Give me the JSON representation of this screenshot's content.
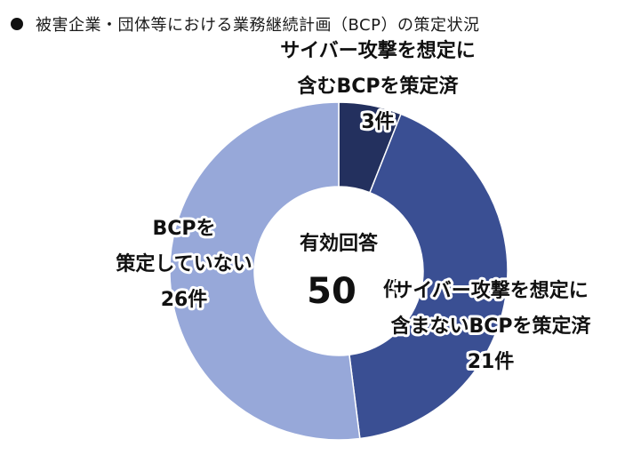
{
  "header": {
    "title": "被害企業・団体等における業務継続計画（BCP）の策定状況"
  },
  "center": {
    "label": "有効回答",
    "value": "50",
    "unit": "件"
  },
  "colors": {
    "dark_navy": "#23305e",
    "medium_blue": "#3a4f93",
    "light_blue": "#97a8d9"
  },
  "chart_data": {
    "type": "pie",
    "style": "donut",
    "title": "被害企業・団体等における業務継続計画（BCP）の策定状況",
    "total": 50,
    "total_label": "有効回答",
    "unit": "件",
    "slices": [
      {
        "label_lines": [
          "サイバー攻撃を想定に",
          "含むBCPを策定済",
          "3件"
        ],
        "value": 3,
        "color": "#23305e"
      },
      {
        "label_lines": [
          "サイバー攻撃を想定に",
          "含まないBCPを策定済",
          "21件"
        ],
        "value": 21,
        "color": "#3a4f93"
      },
      {
        "label_lines": [
          "BCPを",
          "策定していない",
          "26件"
        ],
        "value": 26,
        "color": "#97a8d9"
      }
    ]
  }
}
